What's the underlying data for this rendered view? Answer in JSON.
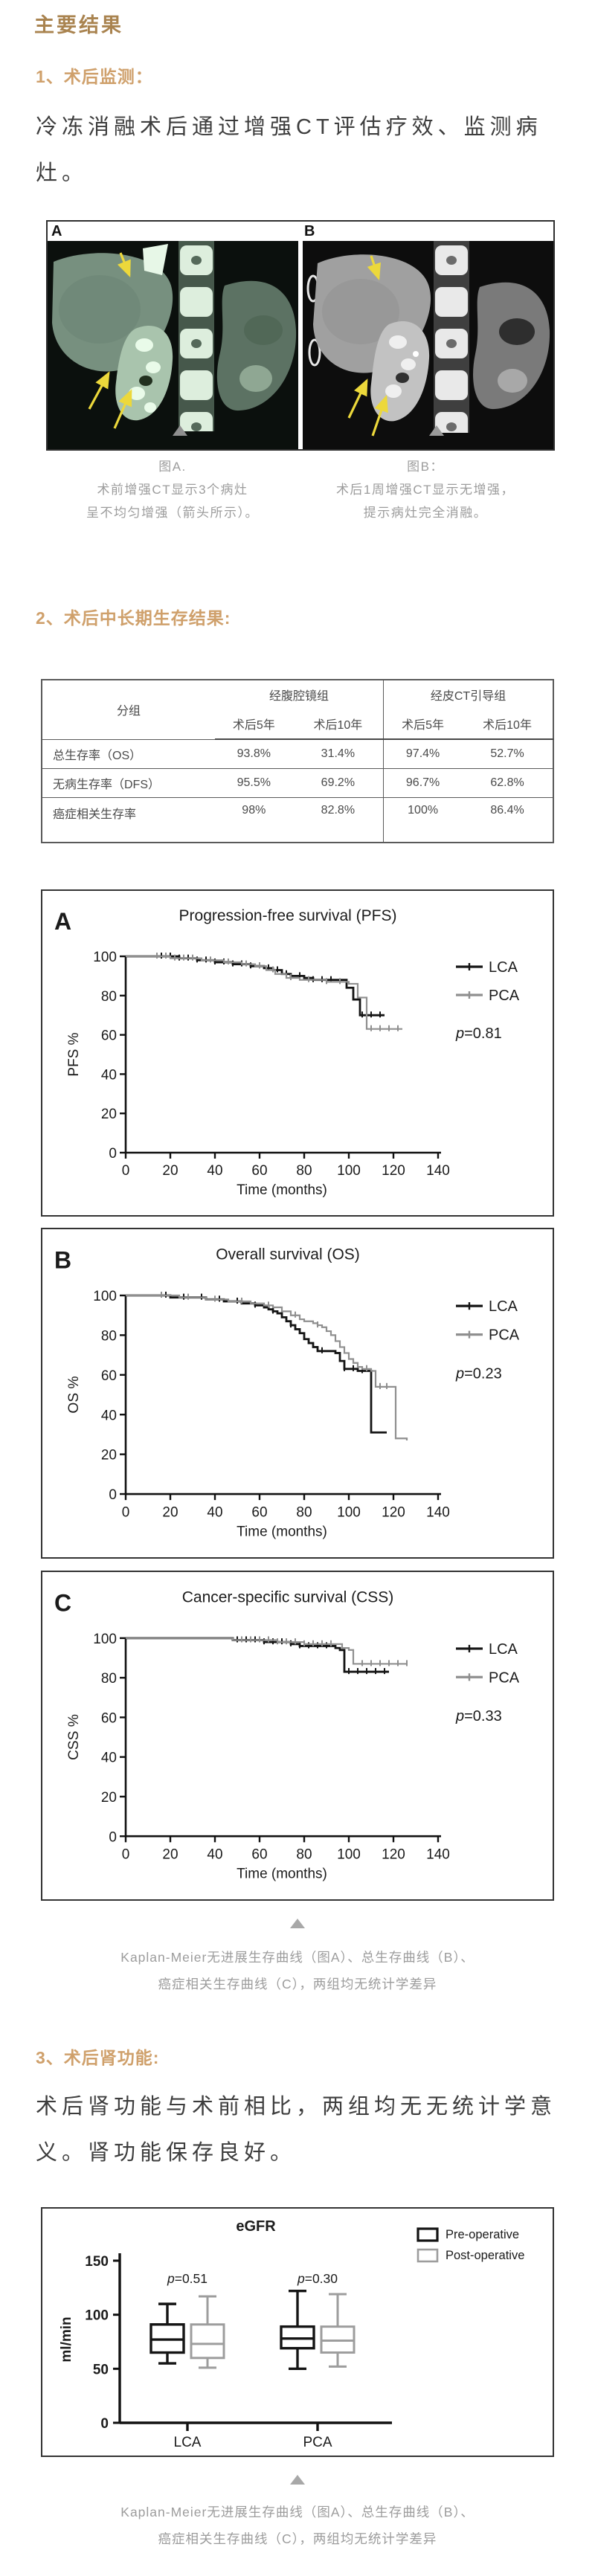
{
  "page": {
    "title": "主要结果"
  },
  "section1": {
    "heading": "1、术后监测：",
    "lines": [
      "冷冻消融术后通过增强CT评估疗效、监测病",
      "灶。"
    ]
  },
  "ct_figure": {
    "label_a": "A",
    "label_b": "B",
    "caption_a": [
      "图A.",
      "术前增强CT显示3个病灶",
      "呈不均匀增强（箭头所示）。"
    ],
    "caption_b": [
      "图B：",
      "术后1周增强CT显示无增强，",
      "提示病灶完全消融。"
    ]
  },
  "section2": {
    "heading": "2、术后中长期生存结果:"
  },
  "table": {
    "corner_label": "分组",
    "group1": "经腹腔镜组",
    "group2": "经皮CT引导组",
    "subheaders": [
      "术后5年",
      "术后10年",
      "术后5年",
      "术后10年"
    ],
    "rows": [
      {
        "label": "总生存率（OS）",
        "values": [
          "93.8%",
          "31.4%",
          "97.4%",
          "52.7%"
        ]
      },
      {
        "label": "无病生存率（DFS）",
        "values": [
          "95.5%",
          "69.2%",
          "96.7%",
          "62.8%"
        ]
      },
      {
        "label": "癌症相关生存率",
        "values": [
          "98%",
          "82.8%",
          "100%",
          "86.4%"
        ]
      }
    ]
  },
  "km_caption": {
    "lines": [
      "Kaplan-Meier无进展生存曲线（图A）、总生存曲线（B）、",
      "癌症相关生存曲线（C），两组均无统计学差异"
    ]
  },
  "section3": {
    "heading": "3、术后肾功能:",
    "lines": [
      "术后肾功能与术前相比，两组均无无统计学意",
      "义。肾功能保存良好。"
    ]
  },
  "bottom_caption": {
    "lines": [
      "Kaplan-Meier无进展生存曲线（图A）、总生存曲线（B）、",
      "癌症相关生存曲线（C），两组均无统计学差异"
    ]
  },
  "colors": {
    "title_gold": "#a9834f",
    "heading_tan": "#cfa06b",
    "body_text": "#3d3d3d",
    "caption_gray": "#9c9c9c",
    "lca_black": "#141414",
    "pca_gray": "#8f8f8f",
    "arrow_yellow": "#ecd83b"
  },
  "chart_data": [
    {
      "id": "pfs",
      "type": "line",
      "panel_label": "A",
      "title": "Progression-free survival (PFS)",
      "xlabel": "Time (months)",
      "ylabel": "PFS %",
      "xlim": [
        0,
        140
      ],
      "ylim": [
        0,
        100
      ],
      "xticks": [
        0,
        20,
        40,
        60,
        80,
        100,
        120,
        140
      ],
      "yticks": [
        0,
        20,
        40,
        60,
        80,
        100
      ],
      "p_value": "0.81",
      "legend_position": "right",
      "series": [
        {
          "name": "LCA",
          "color": "#141414",
          "steps": [
            [
              0,
              100
            ],
            [
              24,
              99
            ],
            [
              32,
              98
            ],
            [
              40,
              97
            ],
            [
              48,
              96
            ],
            [
              56,
              95
            ],
            [
              62,
              94
            ],
            [
              66,
              93
            ],
            [
              70,
              91
            ],
            [
              74,
              90
            ],
            [
              80,
              89
            ],
            [
              84,
              88
            ],
            [
              96,
              88
            ],
            [
              99,
              84
            ],
            [
              102,
              78
            ],
            [
              105,
              70
            ],
            [
              116,
              70
            ]
          ],
          "censors": [
            16,
            20,
            24,
            28,
            32,
            36,
            40,
            44,
            48,
            52,
            56,
            60,
            64,
            68,
            72,
            78,
            84,
            88,
            92,
            106,
            110,
            114
          ]
        },
        {
          "name": "PCA",
          "color": "#8f8f8f",
          "steps": [
            [
              0,
              100
            ],
            [
              20,
              99
            ],
            [
              34,
              98
            ],
            [
              44,
              97
            ],
            [
              52,
              96
            ],
            [
              58,
              95
            ],
            [
              63,
              93
            ],
            [
              67,
              91
            ],
            [
              72,
              89
            ],
            [
              78,
              88
            ],
            [
              90,
              87
            ],
            [
              100,
              86
            ],
            [
              104,
              79
            ],
            [
              108,
              63
            ],
            [
              124,
              63
            ]
          ],
          "censors": [
            14,
            18,
            22,
            26,
            30,
            38,
            46,
            54,
            60,
            66,
            74,
            82,
            90,
            96,
            110,
            114,
            118,
            122
          ]
        }
      ]
    },
    {
      "id": "os",
      "type": "line",
      "panel_label": "B",
      "title": "Overall survival (OS)",
      "xlabel": "Time (months)",
      "ylabel": "OS %",
      "xlim": [
        0,
        140
      ],
      "ylim": [
        0,
        100
      ],
      "xticks": [
        0,
        20,
        40,
        60,
        80,
        100,
        120,
        140
      ],
      "yticks": [
        0,
        20,
        40,
        60,
        80,
        100
      ],
      "p_value": "0.23",
      "legend_position": "right",
      "series": [
        {
          "name": "LCA",
          "color": "#141414",
          "steps": [
            [
              0,
              100
            ],
            [
              20,
              99
            ],
            [
              28,
              99
            ],
            [
              36,
              98
            ],
            [
              44,
              97
            ],
            [
              52,
              96
            ],
            [
              58,
              95
            ],
            [
              62,
              94
            ],
            [
              64,
              93
            ],
            [
              66,
              92
            ],
            [
              68,
              91
            ],
            [
              70,
              89
            ],
            [
              72,
              87
            ],
            [
              74,
              85
            ],
            [
              76,
              83
            ],
            [
              78,
              81
            ],
            [
              80,
              78
            ],
            [
              82,
              76
            ],
            [
              84,
              74
            ],
            [
              86,
              72
            ],
            [
              92,
              72
            ],
            [
              94,
              71
            ],
            [
              96,
              67
            ],
            [
              98,
              63
            ],
            [
              104,
              62
            ],
            [
              108,
              62
            ],
            [
              110,
              31
            ],
            [
              117,
              31
            ]
          ],
          "censors": [
            18,
            26,
            34,
            42,
            50,
            58,
            66,
            74,
            88,
            98,
            102,
            106
          ]
        },
        {
          "name": "PCA",
          "color": "#8f8f8f",
          "steps": [
            [
              0,
              100
            ],
            [
              24,
              99
            ],
            [
              36,
              98
            ],
            [
              46,
              97
            ],
            [
              56,
              96
            ],
            [
              62,
              95
            ],
            [
              66,
              94
            ],
            [
              70,
              92
            ],
            [
              74,
              90
            ],
            [
              78,
              88
            ],
            [
              80,
              87
            ],
            [
              84,
              86
            ],
            [
              86,
              85
            ],
            [
              88,
              84
            ],
            [
              90,
              82
            ],
            [
              92,
              80
            ],
            [
              94,
              77
            ],
            [
              96,
              74
            ],
            [
              98,
              71
            ],
            [
              100,
              68
            ],
            [
              102,
              66
            ],
            [
              104,
              64
            ],
            [
              106,
              63
            ],
            [
              110,
              62
            ],
            [
              112,
              54
            ],
            [
              119,
              54
            ],
            [
              121,
              28
            ],
            [
              126,
              27
            ]
          ],
          "censors": [
            16,
            28,
            40,
            52,
            64,
            76,
            86,
            108,
            114,
            117
          ]
        }
      ]
    },
    {
      "id": "css",
      "type": "line",
      "panel_label": "C",
      "title": "Cancer-specific survival (CSS)",
      "xlabel": "Time (months)",
      "ylabel": "CSS %",
      "xlim": [
        0,
        140
      ],
      "ylim": [
        0,
        100
      ],
      "xticks": [
        0,
        20,
        40,
        60,
        80,
        100,
        120,
        140
      ],
      "yticks": [
        0,
        20,
        40,
        60,
        80,
        100
      ],
      "p_value": "0.33",
      "legend_position": "right",
      "series": [
        {
          "name": "LCA",
          "color": "#141414",
          "steps": [
            [
              0,
              100
            ],
            [
              46,
              100
            ],
            [
              48,
              99
            ],
            [
              58,
              99
            ],
            [
              62,
              98
            ],
            [
              70,
              98
            ],
            [
              74,
              97
            ],
            [
              78,
              96
            ],
            [
              92,
              96
            ],
            [
              94,
              95
            ],
            [
              96,
              94
            ],
            [
              98,
              83
            ],
            [
              118,
              83
            ]
          ],
          "censors": [
            50,
            54,
            58,
            62,
            66,
            70,
            74,
            78,
            82,
            86,
            90,
            100,
            104,
            108,
            112,
            116
          ]
        },
        {
          "name": "PCA",
          "color": "#8f8f8f",
          "steps": [
            [
              0,
              100
            ],
            [
              48,
              99
            ],
            [
              62,
              99
            ],
            [
              68,
              98
            ],
            [
              74,
              98
            ],
            [
              80,
              97
            ],
            [
              94,
              97
            ],
            [
              97,
              95
            ],
            [
              100,
              94
            ],
            [
              102,
              87
            ],
            [
              126,
              87
            ]
          ],
          "censors": [
            52,
            56,
            60,
            64,
            68,
            72,
            76,
            80,
            84,
            88,
            92,
            106,
            110,
            114,
            118,
            122,
            126
          ]
        }
      ]
    },
    {
      "id": "egfr",
      "type": "box",
      "title": "eGFR",
      "ylabel": "ml/min",
      "ylim": [
        0,
        150
      ],
      "yticks": [
        0,
        50,
        100,
        150
      ],
      "categories": [
        "LCA",
        "PCA"
      ],
      "p_values": [
        "0.51",
        "0.30"
      ],
      "legend": [
        {
          "name": "Pre-operative",
          "color": "#141414"
        },
        {
          "name": "Post-operative",
          "color": "#9d9d9d"
        }
      ],
      "boxes": [
        {
          "group": "LCA",
          "series": "Pre-operative",
          "low": 55,
          "q1": 65,
          "median": 77,
          "q3": 91,
          "high": 110
        },
        {
          "group": "LCA",
          "series": "Post-operative",
          "low": 51,
          "q1": 60,
          "median": 73,
          "q3": 91,
          "high": 117
        },
        {
          "group": "PCA",
          "series": "Pre-operative",
          "low": 50,
          "q1": 69,
          "median": 78,
          "q3": 89,
          "high": 122
        },
        {
          "group": "PCA",
          "series": "Post-operative",
          "low": 52,
          "q1": 65,
          "median": 76,
          "q3": 89,
          "high": 119
        }
      ]
    }
  ]
}
